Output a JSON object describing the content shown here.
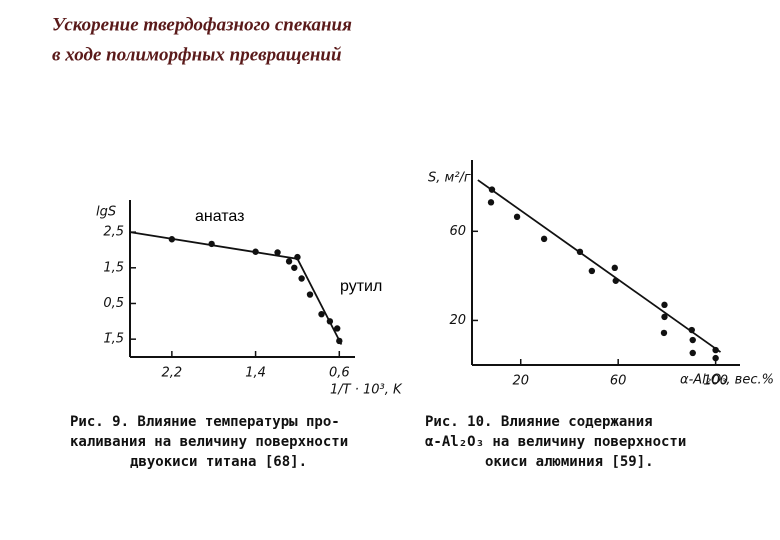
{
  "title": [
    "Ускорение твердофазного спекания",
    "в ходе полиморфных превращений"
  ],
  "chart_data": [
    {
      "type": "scatter",
      "y_label": "lgS",
      "x_label": "1/T · 10³, K",
      "xlim": [
        2.6,
        0.45
      ],
      "ylim": [
        -1.0,
        3.4
      ],
      "xticks": [
        {
          "value": 2.2,
          "label": "2,2"
        },
        {
          "value": 1.4,
          "label": "1,4"
        },
        {
          "value": 0.6,
          "label": "0,6"
        }
      ],
      "yticks": [
        {
          "value": 2.5,
          "label": "2,5"
        },
        {
          "value": 1.5,
          "label": "1,5"
        },
        {
          "value": 0.5,
          "label": "0,5"
        },
        {
          "value": -0.5,
          "label": "1̄,5"
        }
      ],
      "x": [
        2.2,
        1.82,
        1.4,
        1.19,
        1.08,
        1.0,
        1.03,
        0.96,
        0.88,
        0.77,
        0.69,
        0.62,
        0.6
      ],
      "values": [
        2.3,
        2.17,
        1.95,
        1.93,
        1.68,
        1.8,
        1.5,
        1.2,
        0.75,
        0.2,
        0.0,
        -0.2,
        -0.55
      ],
      "fit": {
        "x": [
          2.6,
          1.0,
          0.58
        ],
        "y": [
          2.5,
          1.75,
          -0.65
        ]
      },
      "annotations": [
        "анатаз",
        "рутил"
      ],
      "caption": [
        "Рис. 9. Влияние температуры про-",
        "каливания на величину поверхности",
        "двуокиси титана [68]."
      ]
    },
    {
      "type": "scatter",
      "y_label": "S, м²/г",
      "x_label": "α-Al₂O₃, вес.%",
      "xlim": [
        0,
        110
      ],
      "ylim": [
        0,
        92
      ],
      "xticks": [
        20,
        60,
        100
      ],
      "yticks": [
        20,
        60
      ],
      "x": [
        8.2,
        7.8,
        18.5,
        29.6,
        44.3,
        49.2,
        58.6,
        59,
        79,
        79,
        78.8,
        90.2,
        90.6,
        90.6,
        100,
        100
      ],
      "values": [
        78.7,
        73,
        66.5,
        56.6,
        50.8,
        42.2,
        43.6,
        37.8,
        27,
        21.6,
        14.4,
        15.7,
        11.2,
        5.4,
        6.7,
        3.1
      ],
      "fit": {
        "x": [
          2.4,
          102
        ],
        "y": [
          83,
          5.8
        ]
      },
      "caption": [
        "Рис. 10. Влияние содержания",
        "α-Al₂O₃ на величину поверхности",
        "окиси алюминия [59]."
      ]
    }
  ]
}
